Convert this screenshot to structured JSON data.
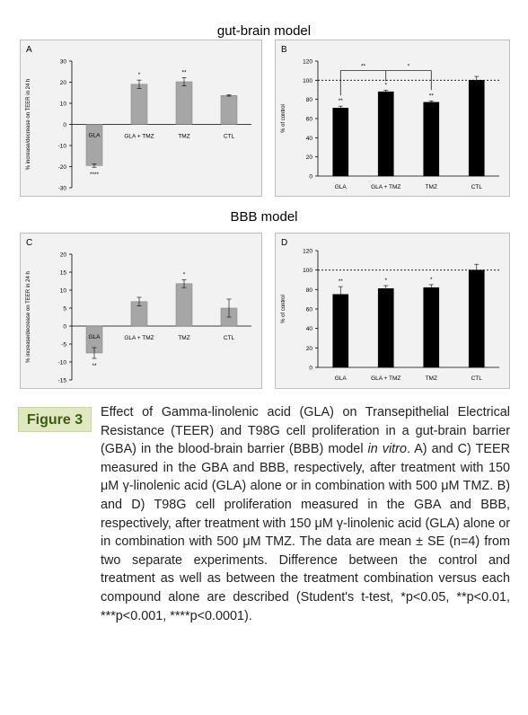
{
  "sections": {
    "top_title": "gut-brain model",
    "bottom_title": "BBB model"
  },
  "colors": {
    "panel_bg": "#f2f2f2",
    "panel_border": "#bdbdbd",
    "gray_bar": "#a6a6a6",
    "black_bar": "#000000",
    "figure_label_bg": "#dfe8bf",
    "figure_label_text": "#3c5a14"
  },
  "chart_data": [
    {
      "id": "A",
      "type": "bar",
      "panel_letter": "A",
      "ylabel": "% increase/decrease on TEER in 24 h",
      "categories": [
        "GLA",
        "GLA + TMZ",
        "TMZ",
        "CTL"
      ],
      "values": [
        -19.5,
        19,
        20.2,
        13.7
      ],
      "errors": [
        0.8,
        2.0,
        2.0,
        0.3
      ],
      "ylim": [
        -30,
        30
      ],
      "yticks": [
        -30,
        -20,
        -10,
        0,
        10,
        20,
        30
      ],
      "significance": [
        "****",
        "*",
        "**",
        ""
      ],
      "bar_color": "gray",
      "reference_line": null
    },
    {
      "id": "B",
      "type": "bar",
      "panel_letter": "B",
      "ylabel": "% of control",
      "categories": [
        "GLA",
        "GLA + TMZ",
        "TMZ",
        "CTL"
      ],
      "values": [
        71,
        88,
        77,
        100
      ],
      "errors": [
        2,
        1.5,
        1.5,
        4
      ],
      "ylim": [
        0,
        120
      ],
      "yticks": [
        0,
        20,
        40,
        60,
        80,
        100,
        120
      ],
      "significance": [
        "**",
        "*",
        "**",
        ""
      ],
      "bracket_labels": [
        "**",
        "*"
      ],
      "bar_color": "black",
      "reference_line": 100
    },
    {
      "id": "C",
      "type": "bar",
      "panel_letter": "C",
      "ylabel": "% increase/decrease on TEER in 24 h",
      "categories": [
        "GLA",
        "GLA + TMZ",
        "TMZ",
        "CTL"
      ],
      "values": [
        -7.5,
        6.8,
        11.8,
        5
      ],
      "errors": [
        1.5,
        1.2,
        1.1,
        2.5
      ],
      "ylim": [
        -15,
        20
      ],
      "yticks": [
        -15,
        -10,
        -5,
        0,
        5,
        10,
        15,
        20
      ],
      "significance": [
        "**",
        "",
        "*",
        ""
      ],
      "bar_color": "gray",
      "reference_line": null
    },
    {
      "id": "D",
      "type": "bar",
      "panel_letter": "D",
      "ylabel": "% of control",
      "categories": [
        "GLA",
        "GLA + TMZ",
        "TMZ",
        "CTL"
      ],
      "values": [
        75,
        81,
        82,
        100
      ],
      "errors": [
        8,
        3,
        3,
        6
      ],
      "ylim": [
        0,
        120
      ],
      "yticks": [
        0,
        20,
        40,
        60,
        80,
        100,
        120
      ],
      "significance": [
        "**",
        "*",
        "*",
        ""
      ],
      "bar_color": "black",
      "reference_line": 100
    }
  ],
  "figure": {
    "label": "Figure 3",
    "caption_parts": [
      "Effect of Gamma-linolenic acid (GLA) on Transepithelial Electrical Resistance (TEER) and T98G cell proliferation in a gut-brain barrier (GBA) in the blood-brain barrier (BBB) model ",
      "in vitro",
      ". A) and C) TEER measured in the GBA and BBB, respectively, after treatment with 150 μM γ-linolenic acid (GLA) alone or in combination with 500 μM TMZ. B) and D) T98G cell proliferation measured in the GBA and BBB, respectively, after treatment with 150 μM γ-linolenic acid (GLA) alone or in combination with 500 μM TMZ. The data are mean ± SE (n=4) from two separate experiments. Difference between the control and treatment as well as between the treatment combination versus each compound alone are described (Student's t-test, *p<0.05, **p<0.01, ***p<0.001, ****p<0.0001)."
    ]
  }
}
